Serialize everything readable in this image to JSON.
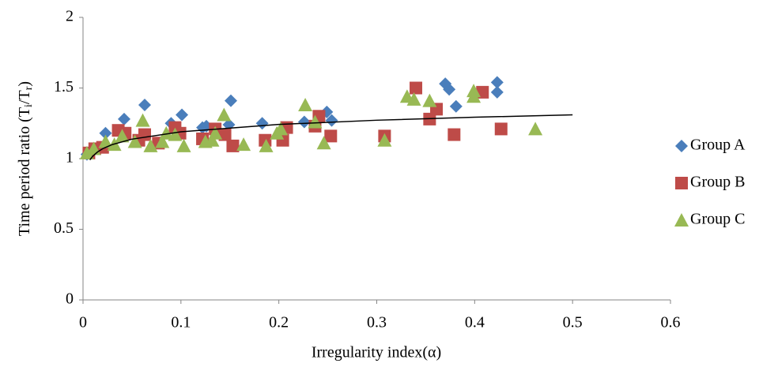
{
  "chart_data": {
    "type": "scatter",
    "xlabel": "Irregularity index(α)",
    "ylabel": [
      "Time period ratio (T",
      "i",
      "/T",
      "r",
      ")"
    ],
    "xlim": [
      0,
      0.6
    ],
    "ylim": [
      0,
      2
    ],
    "xticks": [
      0,
      0.1,
      0.2,
      0.3,
      0.4,
      0.5,
      0.6
    ],
    "yticks": [
      0,
      0.5,
      1,
      1.5,
      2
    ],
    "grid": false,
    "legend": "right",
    "series": [
      {
        "name": "Group A",
        "color": "#4a7ebb",
        "marker": "diamond",
        "x": [
          0.004,
          0.007,
          0.012,
          0.023,
          0.042,
          0.063,
          0.09,
          0.101,
          0.122,
          0.126,
          0.149,
          0.151,
          0.183,
          0.226,
          0.249,
          0.254,
          0.37,
          0.374,
          0.381,
          0.423,
          0.423
        ],
        "values": [
          1.03,
          1.04,
          1.07,
          1.18,
          1.28,
          1.38,
          1.25,
          1.31,
          1.22,
          1.23,
          1.24,
          1.41,
          1.25,
          1.26,
          1.33,
          1.27,
          1.53,
          1.49,
          1.37,
          1.54,
          1.47
        ]
      },
      {
        "name": "Group B",
        "color": "#be4b48",
        "marker": "square",
        "x": [
          0.006,
          0.012,
          0.02,
          0.036,
          0.043,
          0.057,
          0.063,
          0.077,
          0.094,
          0.099,
          0.122,
          0.135,
          0.145,
          0.153,
          0.186,
          0.204,
          0.208,
          0.237,
          0.241,
          0.253,
          0.308,
          0.34,
          0.354,
          0.361,
          0.379,
          0.408,
          0.427
        ],
        "values": [
          1.04,
          1.07,
          1.08,
          1.2,
          1.18,
          1.13,
          1.17,
          1.11,
          1.22,
          1.18,
          1.14,
          1.21,
          1.17,
          1.09,
          1.13,
          1.13,
          1.22,
          1.23,
          1.3,
          1.16,
          1.16,
          1.5,
          1.28,
          1.35,
          1.17,
          1.47,
          1.21
        ]
      },
      {
        "name": "Group C",
        "color": "#98b954",
        "marker": "triangle",
        "x": [
          0.004,
          0.011,
          0.023,
          0.032,
          0.04,
          0.053,
          0.061,
          0.069,
          0.081,
          0.085,
          0.094,
          0.103,
          0.125,
          0.132,
          0.135,
          0.144,
          0.164,
          0.187,
          0.198,
          0.202,
          0.227,
          0.237,
          0.246,
          0.308,
          0.331,
          0.338,
          0.354,
          0.399,
          0.399,
          0.462
        ],
        "values": [
          1.04,
          1.07,
          1.12,
          1.1,
          1.16,
          1.12,
          1.27,
          1.09,
          1.12,
          1.18,
          1.17,
          1.09,
          1.12,
          1.13,
          1.18,
          1.31,
          1.1,
          1.09,
          1.18,
          1.21,
          1.38,
          1.26,
          1.11,
          1.13,
          1.44,
          1.42,
          1.41,
          1.48,
          1.44,
          1.21
        ]
      }
    ],
    "trendline": {
      "color": "#000000",
      "x": [
        0.007,
        0.01,
        0.015,
        0.02,
        0.03,
        0.05,
        0.1,
        0.2,
        0.3,
        0.4,
        0.5
      ],
      "values": [
        0.991,
        1.018,
        1.048,
        1.07,
        1.1,
        1.138,
        1.19,
        1.242,
        1.272,
        1.293,
        1.31
      ]
    }
  }
}
